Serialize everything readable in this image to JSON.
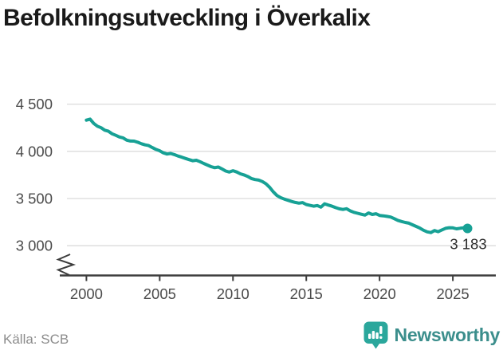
{
  "title": "Befolkningsutveckling i Överkalix",
  "source": "Källa: SCB",
  "brand": {
    "name": "Newsworthy",
    "icon": "newsworthy-speech-bubble-bar-chart-icon"
  },
  "colors": {
    "line": "#17a195",
    "grid": "#dbdbdb",
    "axis": "#3d3d3d",
    "tick_label": "#4b4b4b",
    "title": "#1a1a1a",
    "source": "#8c8c8c",
    "annotation": "#2b2b2b",
    "brand_text": "#3b8e8c",
    "brand_icon": "#2ba79c"
  },
  "chart_data": {
    "type": "line",
    "title": "Befolkningsutveckling i Överkalix",
    "xlabel": "",
    "ylabel": "",
    "x_unit": "decimal year (quarterly population points, SCB)",
    "x_start": 2000.0,
    "x_step": 0.25,
    "x_end": 2026.0,
    "values": [
      4330,
      4341,
      4296,
      4266,
      4250,
      4224,
      4213,
      4186,
      4170,
      4152,
      4143,
      4118,
      4109,
      4108,
      4096,
      4080,
      4068,
      4061,
      4040,
      4020,
      4006,
      3984,
      3971,
      3977,
      3965,
      3950,
      3938,
      3925,
      3912,
      3900,
      3905,
      3890,
      3872,
      3855,
      3838,
      3827,
      3834,
      3813,
      3791,
      3780,
      3795,
      3781,
      3762,
      3750,
      3734,
      3712,
      3701,
      3695,
      3680,
      3655,
      3618,
      3571,
      3532,
      3509,
      3494,
      3481,
      3469,
      3459,
      3451,
      3457,
      3437,
      3427,
      3419,
      3426,
      3409,
      3444,
      3431,
      3419,
      3404,
      3391,
      3384,
      3392,
      3369,
      3354,
      3344,
      3334,
      3324,
      3347,
      3331,
      3339,
      3321,
      3317,
      3311,
      3304,
      3287,
      3269,
      3257,
      3247,
      3239,
      3221,
      3204,
      3187,
      3164,
      3147,
      3139,
      3161,
      3149,
      3167,
      3184,
      3191,
      3189,
      3179,
      3185,
      3189,
      3183
    ],
    "end_value": 3183,
    "end_label": "3 183",
    "x_ticks": [
      2000,
      2005,
      2010,
      2015,
      2020,
      2025
    ],
    "y_ticks": [
      {
        "label": "4 500",
        "value": 4500
      },
      {
        "label": "4 000",
        "value": 4000
      },
      {
        "label": "3 500",
        "value": 3500
      },
      {
        "label": "3 000",
        "value": 3000
      }
    ],
    "ylim": [
      2870,
      4560
    ],
    "axis_break": true,
    "grid": "horizontal",
    "legend": "none",
    "marker_on_last_point": true
  }
}
